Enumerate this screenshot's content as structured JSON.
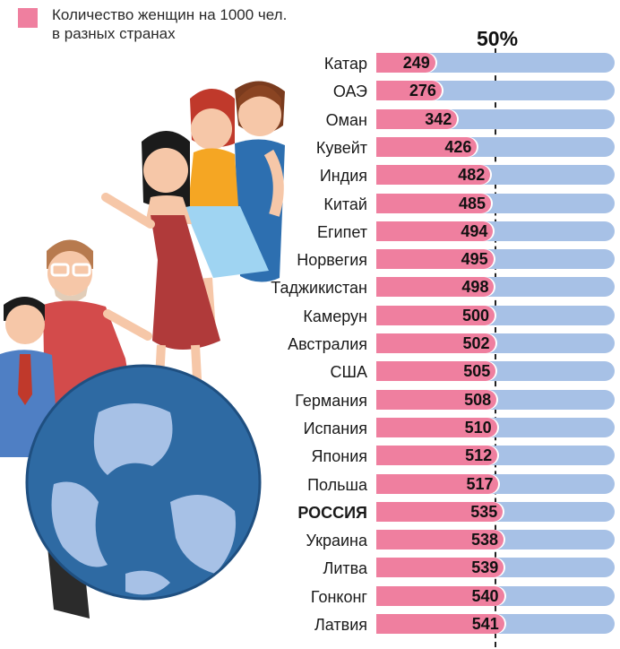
{
  "legend": {
    "line1": "Количество женщин на 1000 чел.",
    "line2": "в разных странах",
    "color": "#ef7f9f"
  },
  "reference": {
    "label": "50%",
    "value": 500
  },
  "colors": {
    "female": "#ef7f9f",
    "track": "#a7c1e6"
  },
  "chart_data": {
    "type": "bar",
    "orientation": "horizontal",
    "xlim": [
      0,
      1000
    ],
    "categories": [
      "Катар",
      "ОАЭ",
      "Оман",
      "Кувейт",
      "Индия",
      "Китай",
      "Египет",
      "Норвегия",
      "Таджикистан",
      "Камерун",
      "Австралия",
      "США",
      "Германия",
      "Испания",
      "Япония",
      "Польша",
      "РОССИЯ",
      "Украина",
      "Литва",
      "Гонконг",
      "Латвия"
    ],
    "values": [
      249,
      276,
      342,
      426,
      482,
      485,
      494,
      495,
      498,
      500,
      502,
      505,
      508,
      510,
      512,
      517,
      535,
      538,
      539,
      540,
      541
    ],
    "highlight": "РОССИЯ",
    "reference_line": 500
  }
}
